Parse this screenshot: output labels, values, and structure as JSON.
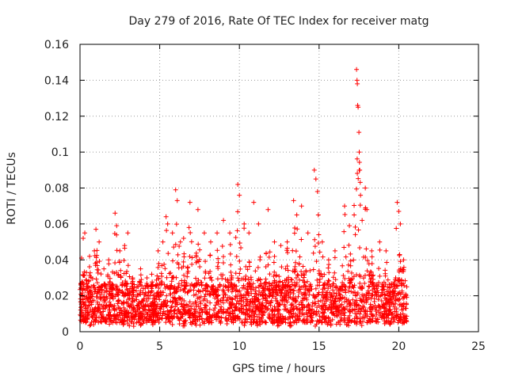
{
  "chart_data": {
    "type": "scatter",
    "title": "Day 279 of 2016, Rate Of TEC Index for receiver matg",
    "xlabel": "GPS time / hours",
    "ylabel": "ROTI / TECUs",
    "xlim": [
      0,
      25
    ],
    "ylim": [
      0,
      0.16
    ],
    "xticks": [
      0,
      5,
      10,
      15,
      20,
      25
    ],
    "xtick_labels": [
      "0",
      "5",
      "10",
      "15",
      "20",
      "25"
    ],
    "yticks": [
      0,
      0.02,
      0.04,
      0.06,
      0.08,
      0.1,
      0.12,
      0.14,
      0.16
    ],
    "ytick_labels": [
      "0",
      "0.02",
      "0.04",
      "0.06",
      "0.08",
      "0.1",
      "0.12",
      "0.14",
      "0.16"
    ],
    "grid": true,
    "marker": "+",
    "color": "#ff0000",
    "x_coverage": [
      0,
      20.5
    ],
    "baseline_range": [
      0.005,
      0.025
    ],
    "series": [
      {
        "name": "ROTI",
        "points": [
          [
            0.1,
            0.041
          ],
          [
            0.2,
            0.052
          ],
          [
            0.3,
            0.055
          ],
          [
            0.4,
            0.033
          ],
          [
            0.6,
            0.042
          ],
          [
            0.9,
            0.045
          ],
          [
            1.0,
            0.057
          ],
          [
            1.2,
            0.05
          ],
          [
            1.5,
            0.035
          ],
          [
            1.8,
            0.04
          ],
          [
            2.2,
            0.066
          ],
          [
            2.3,
            0.059
          ],
          [
            2.5,
            0.045
          ],
          [
            2.8,
            0.048
          ],
          [
            3.0,
            0.055
          ],
          [
            3.3,
            0.03
          ],
          [
            3.8,
            0.035
          ],
          [
            4.2,
            0.03
          ],
          [
            4.5,
            0.032
          ],
          [
            4.9,
            0.045
          ],
          [
            5.2,
            0.05
          ],
          [
            5.4,
            0.064
          ],
          [
            5.5,
            0.06
          ],
          [
            5.8,
            0.055
          ],
          [
            6.0,
            0.079
          ],
          [
            6.1,
            0.073
          ],
          [
            6.3,
            0.05
          ],
          [
            6.5,
            0.052
          ],
          [
            6.9,
            0.072
          ],
          [
            7.4,
            0.068
          ],
          [
            7.8,
            0.055
          ],
          [
            8.2,
            0.05
          ],
          [
            8.6,
            0.055
          ],
          [
            9.0,
            0.062
          ],
          [
            9.4,
            0.055
          ],
          [
            9.9,
            0.082
          ],
          [
            10.0,
            0.076
          ],
          [
            10.3,
            0.06
          ],
          [
            10.6,
            0.055
          ],
          [
            10.9,
            0.072
          ],
          [
            11.2,
            0.06
          ],
          [
            11.8,
            0.068
          ],
          [
            12.2,
            0.05
          ],
          [
            12.6,
            0.048
          ],
          [
            13.0,
            0.05
          ],
          [
            13.4,
            0.073
          ],
          [
            13.6,
            0.065
          ],
          [
            13.9,
            0.07
          ],
          [
            14.3,
            0.055
          ],
          [
            14.7,
            0.09
          ],
          [
            14.8,
            0.085
          ],
          [
            14.9,
            0.078
          ],
          [
            14.95,
            0.065
          ],
          [
            15.2,
            0.05
          ],
          [
            15.6,
            0.04
          ],
          [
            16.0,
            0.045
          ],
          [
            16.6,
            0.07
          ],
          [
            16.9,
            0.059
          ],
          [
            17.2,
            0.065
          ],
          [
            17.35,
            0.146
          ],
          [
            17.38,
            0.14
          ],
          [
            17.4,
            0.138
          ],
          [
            17.42,
            0.126
          ],
          [
            17.45,
            0.125
          ],
          [
            17.5,
            0.111
          ],
          [
            17.52,
            0.1
          ],
          [
            17.55,
            0.09
          ],
          [
            17.6,
            0.076
          ],
          [
            17.7,
            0.062
          ],
          [
            17.9,
            0.08
          ],
          [
            18.0,
            0.068
          ],
          [
            18.3,
            0.045
          ],
          [
            18.8,
            0.05
          ],
          [
            19.2,
            0.045
          ],
          [
            19.9,
            0.072
          ],
          [
            20.0,
            0.067
          ],
          [
            20.1,
            0.06
          ],
          [
            20.3,
            0.04
          ],
          [
            20.5,
            0.025
          ]
        ]
      }
    ]
  }
}
